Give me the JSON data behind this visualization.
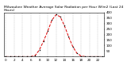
{
  "title": "Milwaukee Weather Average Solar Radiation per Hour W/m2 (Last 24 Hours)",
  "hours": [
    0,
    1,
    2,
    3,
    4,
    5,
    6,
    7,
    8,
    9,
    10,
    11,
    12,
    13,
    14,
    15,
    16,
    17,
    18,
    19,
    20,
    21,
    22,
    23
  ],
  "values": [
    0,
    0,
    0,
    0,
    0,
    0,
    0,
    10,
    60,
    140,
    230,
    330,
    380,
    360,
    280,
    180,
    90,
    30,
    5,
    0,
    0,
    0,
    0,
    0
  ],
  "line_color": "#dd0000",
  "linestyle": "--",
  "bg_color": "#ffffff",
  "plot_bg": "#ffffff",
  "grid_color": "#999999",
  "ylim": [
    0,
    400
  ],
  "ytick_vals": [
    50,
    100,
    150,
    200,
    250,
    300,
    350,
    400
  ],
  "xtick_vals": [
    0,
    2,
    4,
    6,
    8,
    10,
    12,
    14,
    16,
    18,
    20,
    22
  ],
  "tick_fontsize": 3.0,
  "title_fontsize": 3.2,
  "marker_size": 1.5
}
